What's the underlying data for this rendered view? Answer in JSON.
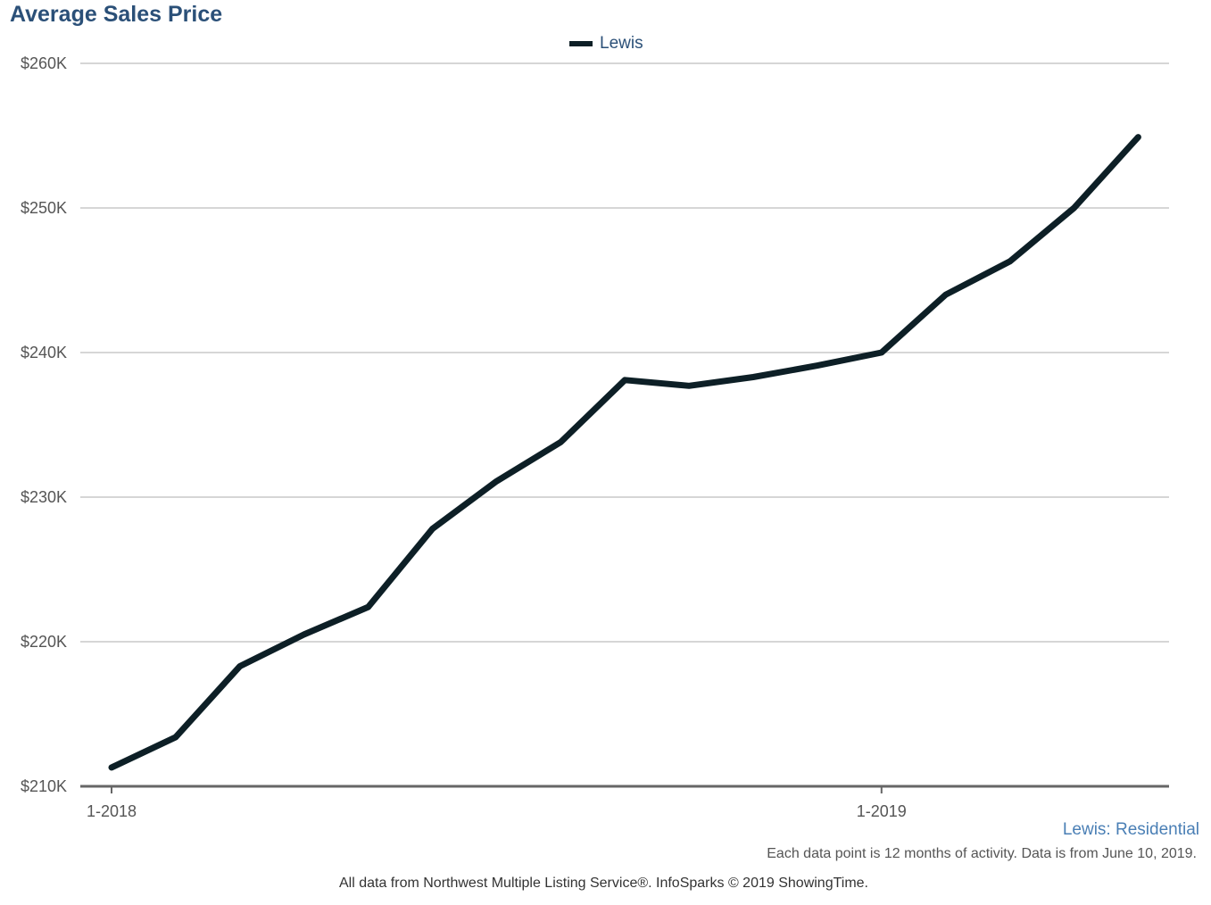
{
  "chart_data": {
    "type": "line",
    "title": "Average Sales Price",
    "ylim": [
      210000,
      260000
    ],
    "y_ticks": [
      {
        "value": 210000,
        "label": "$210K"
      },
      {
        "value": 220000,
        "label": "$220K"
      },
      {
        "value": 230000,
        "label": "$230K"
      },
      {
        "value": 240000,
        "label": "$240K"
      },
      {
        "value": 250000,
        "label": "$250K"
      },
      {
        "value": 260000,
        "label": "$260K"
      }
    ],
    "x": [
      "2018-01",
      "2018-02",
      "2018-03",
      "2018-04",
      "2018-05",
      "2018-06",
      "2018-07",
      "2018-08",
      "2018-09",
      "2018-10",
      "2018-11",
      "2018-12",
      "2019-01",
      "2019-02",
      "2019-03",
      "2019-04",
      "2019-05"
    ],
    "x_ticks": [
      {
        "value": "2018-01",
        "label": "1-2018"
      },
      {
        "value": "2019-01",
        "label": "1-2019"
      }
    ],
    "series": [
      {
        "name": "Lewis",
        "color": "#0d1f26",
        "values": [
          211300,
          213400,
          218300,
          220500,
          222400,
          227800,
          231100,
          233800,
          238100,
          237700,
          238300,
          239100,
          240000,
          244000,
          246300,
          250000,
          254900
        ]
      }
    ],
    "grid": true,
    "legend_position": "top-center"
  },
  "subtitle": "Lewis: Residential",
  "note": "Each data point is 12 months of activity. Data is from June 10, 2019.",
  "source": "All data from Northwest Multiple Listing Service®. InfoSparks © 2019 ShowingTime."
}
